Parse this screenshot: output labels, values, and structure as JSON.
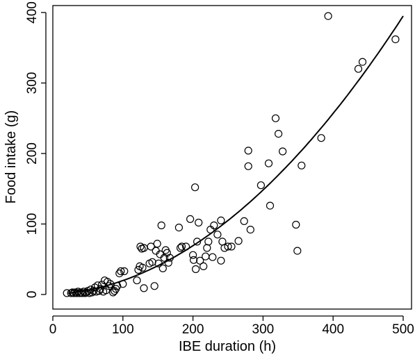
{
  "chart_data": {
    "type": "scatter",
    "title": "",
    "xlabel": "IBE duration (h)",
    "ylabel": "Food intake (g)",
    "xlim": [
      0,
      500
    ],
    "ylim": [
      0,
      400
    ],
    "xticks": [
      0,
      100,
      200,
      300,
      400,
      500
    ],
    "yticks": [
      0,
      100,
      200,
      300,
      400
    ],
    "xtick_labels": [
      "0",
      "100",
      "200",
      "300",
      "400",
      "500"
    ],
    "ytick_labels": [
      "0",
      "100",
      "200",
      "300",
      "400"
    ],
    "grid": false,
    "legend": "none",
    "colors": {
      "points": "#000000",
      "fit": "#000000",
      "axes": "#000000"
    },
    "series": [
      {
        "kind": "points",
        "marker": "open-circle",
        "points": [
          [
            20,
            2
          ],
          [
            26,
            2
          ],
          [
            28,
            3
          ],
          [
            30,
            2
          ],
          [
            32,
            3
          ],
          [
            34,
            2
          ],
          [
            36,
            4
          ],
          [
            38,
            2
          ],
          [
            40,
            3
          ],
          [
            42,
            2
          ],
          [
            44,
            4
          ],
          [
            46,
            2
          ],
          [
            48,
            3
          ],
          [
            50,
            5
          ],
          [
            52,
            2
          ],
          [
            54,
            7
          ],
          [
            56,
            3
          ],
          [
            58,
            5
          ],
          [
            60,
            10
          ],
          [
            62,
            4
          ],
          [
            64,
            13
          ],
          [
            66,
            5
          ],
          [
            68,
            8
          ],
          [
            70,
            14
          ],
          [
            72,
            4
          ],
          [
            74,
            20
          ],
          [
            76,
            6
          ],
          [
            78,
            18
          ],
          [
            80,
            12
          ],
          [
            82,
            15
          ],
          [
            86,
            3
          ],
          [
            88,
            5
          ],
          [
            90,
            8
          ],
          [
            92,
            12
          ],
          [
            95,
            30
          ],
          [
            97,
            33
          ],
          [
            100,
            15
          ],
          [
            102,
            33
          ],
          [
            120,
            20
          ],
          [
            122,
            35
          ],
          [
            124,
            40
          ],
          [
            125,
            68
          ],
          [
            127,
            65
          ],
          [
            128,
            38
          ],
          [
            130,
            9
          ],
          [
            130,
            66
          ],
          [
            138,
            44
          ],
          [
            140,
            68
          ],
          [
            142,
            46
          ],
          [
            145,
            12
          ],
          [
            147,
            62
          ],
          [
            149,
            72
          ],
          [
            151,
            44
          ],
          [
            153,
            57
          ],
          [
            155,
            98
          ],
          [
            157,
            37
          ],
          [
            159,
            52
          ],
          [
            161,
            63
          ],
          [
            163,
            59
          ],
          [
            165,
            45
          ],
          [
            167,
            52
          ],
          [
            180,
            95
          ],
          [
            182,
            66
          ],
          [
            184,
            68
          ],
          [
            190,
            68
          ],
          [
            196,
            107
          ],
          [
            200,
            56
          ],
          [
            201,
            49
          ],
          [
            203,
            152
          ],
          [
            204,
            36
          ],
          [
            206,
            75
          ],
          [
            208,
            102
          ],
          [
            210,
            48
          ],
          [
            215,
            40
          ],
          [
            218,
            54
          ],
          [
            220,
            66
          ],
          [
            222,
            75
          ],
          [
            225,
            92
          ],
          [
            228,
            53
          ],
          [
            230,
            98
          ],
          [
            235,
            85
          ],
          [
            240,
            105
          ],
          [
            240,
            48
          ],
          [
            242,
            75
          ],
          [
            245,
            66
          ],
          [
            250,
            68
          ],
          [
            255,
            68
          ],
          [
            265,
            76
          ],
          [
            273,
            104
          ],
          [
            279,
            204
          ],
          [
            279,
            182
          ],
          [
            282,
            92
          ],
          [
            297,
            155
          ],
          [
            308,
            186
          ],
          [
            310,
            126
          ],
          [
            318,
            250
          ],
          [
            322,
            228
          ],
          [
            328,
            203
          ],
          [
            347,
            99
          ],
          [
            349,
            62
          ],
          [
            355,
            183
          ],
          [
            383,
            222
          ],
          [
            393,
            395
          ],
          [
            436,
            320
          ],
          [
            442,
            330
          ],
          [
            489,
            362
          ]
        ]
      },
      {
        "kind": "fit",
        "curve": "quadratic",
        "x_range": [
          22,
          500
        ],
        "coefficients": {
          "a": 0.00148,
          "b": 0.05,
          "c": 0
        }
      }
    ]
  }
}
